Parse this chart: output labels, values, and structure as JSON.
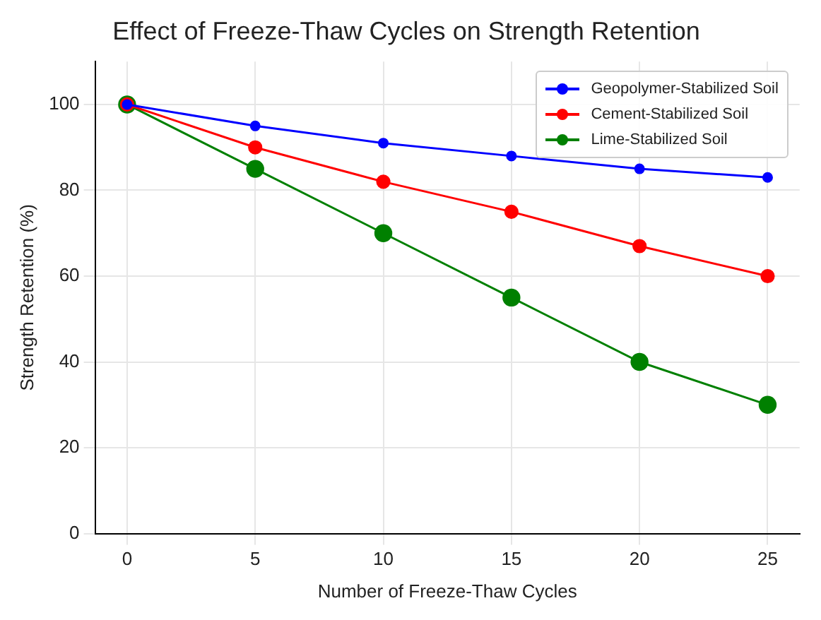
{
  "chart_data": {
    "type": "line",
    "title": "Effect of Freeze-Thaw Cycles on Strength Retention",
    "xlabel": "Number of Freeze-Thaw Cycles",
    "ylabel": "Strength Retention (%)",
    "x": [
      0,
      5,
      10,
      15,
      20,
      25
    ],
    "series": [
      {
        "name": "Geopolymer-Stabilized Soil",
        "color": "#0000ff",
        "values": [
          100,
          95,
          91,
          88,
          85,
          83
        ]
      },
      {
        "name": "Cement-Stabilized Soil",
        "color": "#ff0000",
        "values": [
          100,
          90,
          82,
          75,
          67,
          60
        ]
      },
      {
        "name": "Lime-Stabilized Soil",
        "color": "#008000",
        "values": [
          100,
          85,
          70,
          55,
          40,
          30
        ]
      }
    ],
    "xlim": [
      -1.25,
      26.25
    ],
    "xticks": [
      0,
      5,
      10,
      15,
      20,
      25
    ],
    "ylim": [
      0,
      110
    ],
    "yticks": [
      0,
      20,
      40,
      60,
      80,
      100
    ],
    "grid": true,
    "legend": "top right",
    "marker": "circle",
    "line_style": "solid"
  }
}
